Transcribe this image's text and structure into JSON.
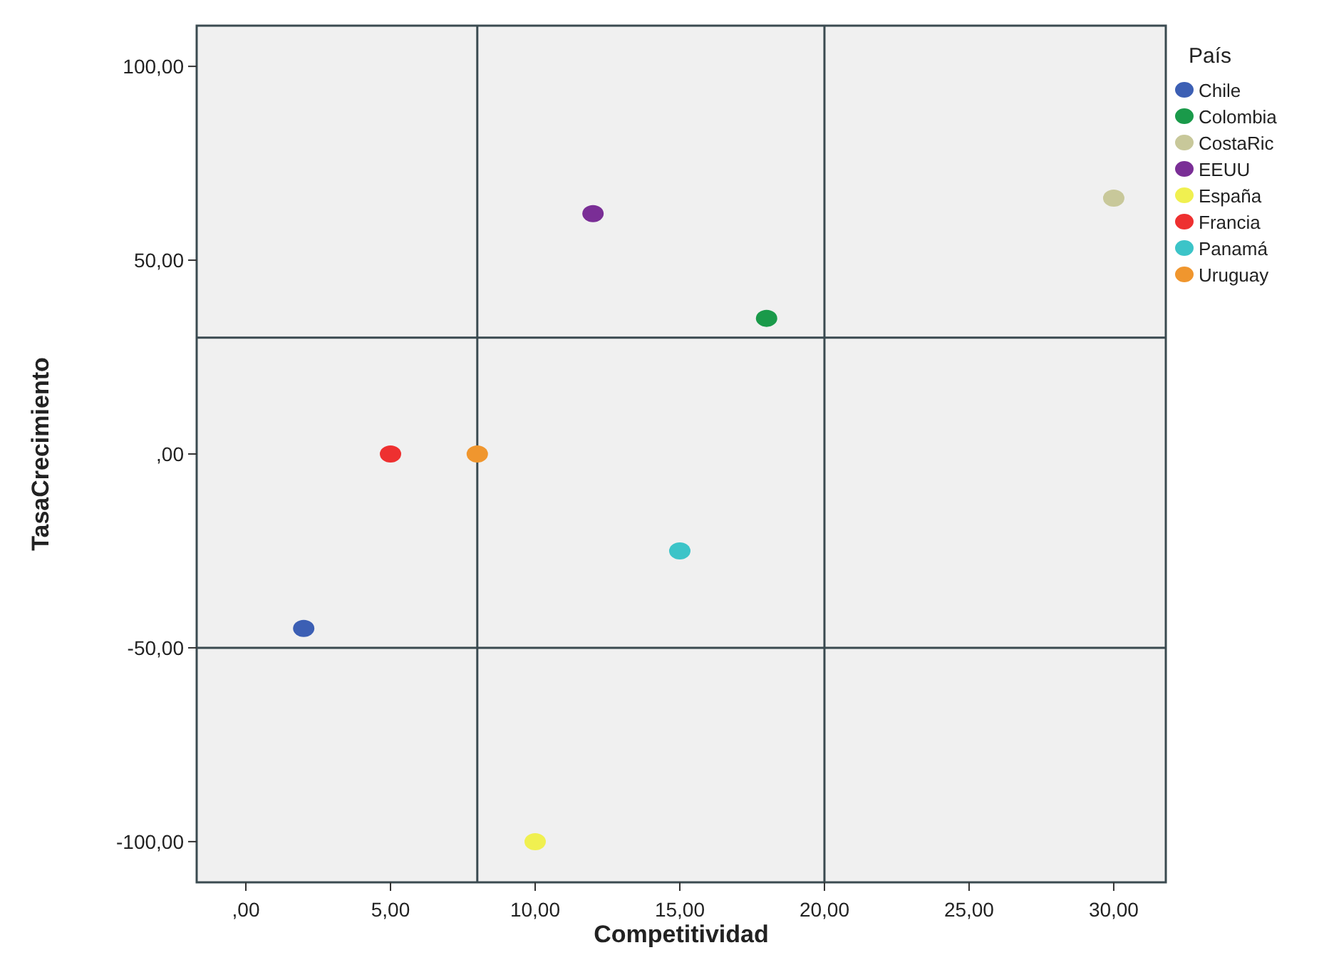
{
  "chart_data": {
    "type": "scatter",
    "xlabel": "Competitividad",
    "ylabel": "TasaCrecimiento",
    "legend_title": "País",
    "legend": "right",
    "marker": "circle",
    "grid": false,
    "xlim": [
      -1.7,
      31.8
    ],
    "ylim": [
      -110.5,
      110.5
    ],
    "xticks": [
      {
        "value": 0,
        "label": ",00"
      },
      {
        "value": 5,
        "label": "5,00"
      },
      {
        "value": 10,
        "label": "10,00"
      },
      {
        "value": 15,
        "label": "15,00"
      },
      {
        "value": 20,
        "label": "20,00"
      },
      {
        "value": 25,
        "label": "25,00"
      },
      {
        "value": 30,
        "label": "30,00"
      }
    ],
    "yticks": [
      {
        "value": -100,
        "label": "-100,00"
      },
      {
        "value": -50,
        "label": "-50,00"
      },
      {
        "value": 0,
        "label": ",00"
      },
      {
        "value": 50,
        "label": "50,00"
      },
      {
        "value": 100,
        "label": "100,00"
      }
    ],
    "ref_lines": [
      {
        "axis": "x",
        "value": 8,
        "color": "#3a4a50"
      },
      {
        "axis": "x",
        "value": 20,
        "color": "#3a4a50"
      },
      {
        "axis": "y",
        "value": 30,
        "color": "#3a4a50"
      },
      {
        "axis": "y",
        "value": -50,
        "color": "#3a4a50"
      }
    ],
    "series": [
      {
        "name": "Chile",
        "color": "#3c5fb4",
        "x": [
          2
        ],
        "values": [
          -45
        ]
      },
      {
        "name": "Colombia",
        "color": "#1a9a4a",
        "x": [
          18
        ],
        "values": [
          35
        ]
      },
      {
        "name": "CostaRic",
        "color": "#c8c89a",
        "x": [
          30
        ],
        "values": [
          66
        ]
      },
      {
        "name": "EEUU",
        "color": "#7a2e96",
        "x": [
          12
        ],
        "values": [
          62
        ]
      },
      {
        "name": "España",
        "color": "#f0f050",
        "x": [
          10
        ],
        "values": [
          -100
        ]
      },
      {
        "name": "Francia",
        "color": "#ee3030",
        "x": [
          5
        ],
        "values": [
          0
        ]
      },
      {
        "name": "Panamá",
        "color": "#3cc4c8",
        "x": [
          15
        ],
        "values": [
          -25
        ]
      },
      {
        "name": "Uruguay",
        "color": "#f0962e",
        "x": [
          8
        ],
        "values": [
          0
        ]
      }
    ]
  }
}
